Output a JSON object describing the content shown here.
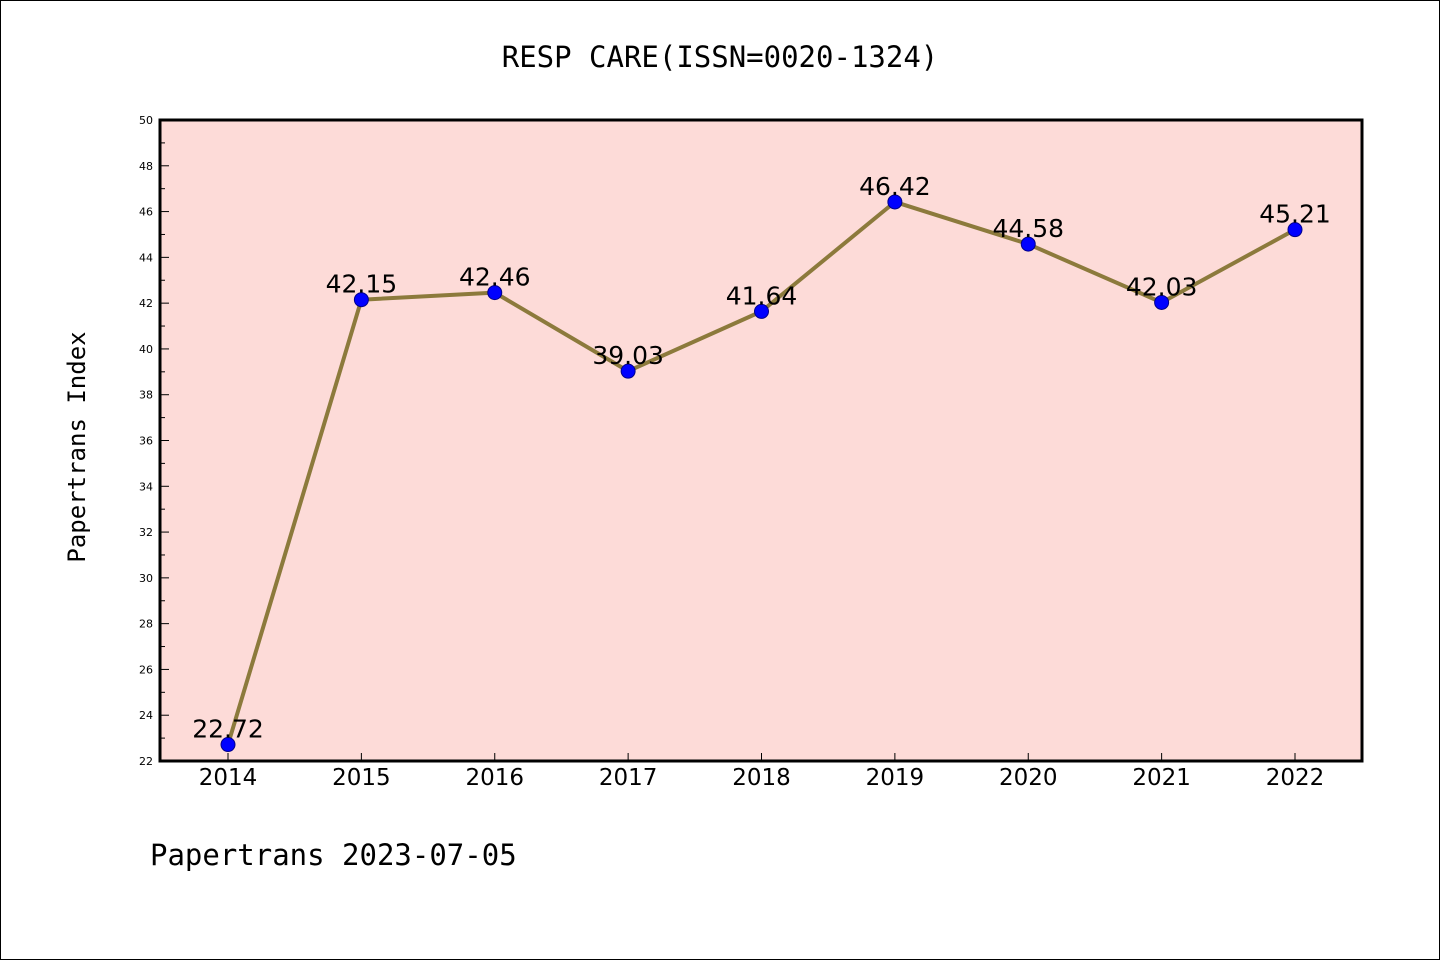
{
  "chart_data": {
    "type": "line",
    "title": "RESP CARE(ISSN=0020-1324)",
    "ylabel": "Papertrans Index",
    "xlabel": "",
    "footer": "Papertrans 2023-07-05",
    "x": [
      "2014",
      "2015",
      "2016",
      "2017",
      "2018",
      "2019",
      "2020",
      "2021",
      "2022"
    ],
    "values": [
      22.72,
      42.15,
      42.46,
      39.03,
      41.64,
      46.42,
      44.58,
      42.03,
      45.21
    ],
    "data_labels": [
      "22.72",
      "42.15",
      "42.46",
      "39.03",
      "41.64",
      "46.42",
      "44.58",
      "42.03",
      "45.21"
    ],
    "ylim": [
      22,
      50
    ],
    "yticks": [
      "22",
      "24",
      "26",
      "28",
      "30",
      "32",
      "34",
      "36",
      "38",
      "40",
      "42",
      "44",
      "46",
      "48",
      "50"
    ],
    "grid": false,
    "colors": {
      "plot_background": "#fddbd8",
      "line": "#8c7a3c",
      "marker_fill": "#0000ff",
      "marker_edge": "#00008b",
      "axes": "#000000"
    }
  }
}
